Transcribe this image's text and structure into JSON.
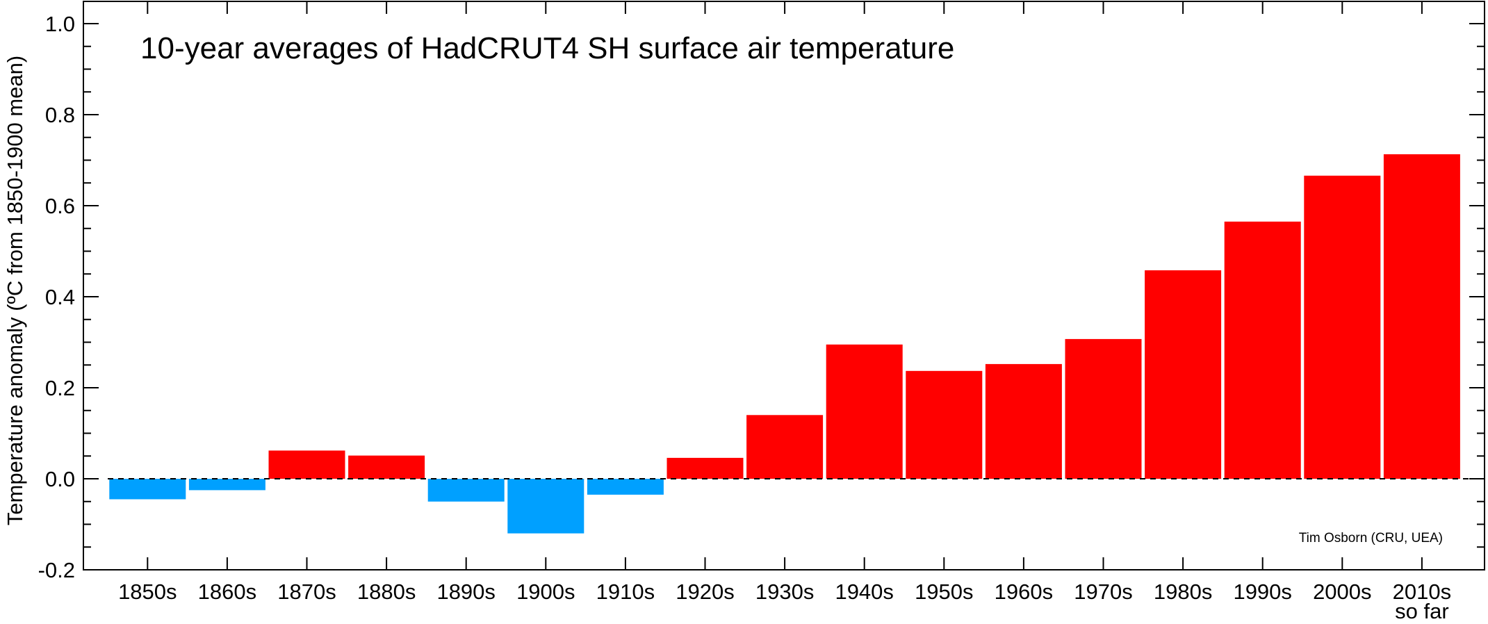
{
  "chart_data": {
    "type": "bar",
    "title": "10-year averages of HadCRUT4 SH surface air temperature",
    "ylabel": "Temperature anomaly (ºC from 1850-1900 mean)",
    "xlabel": "",
    "ylim": [
      -0.2,
      1.0
    ],
    "yticks": [
      "-0.2",
      "0.0",
      "0.2",
      "0.4",
      "0.6",
      "0.8",
      "1.0"
    ],
    "categories": [
      "1850s",
      "1860s",
      "1870s",
      "1880s",
      "1890s",
      "1900s",
      "1910s",
      "1920s",
      "1930s",
      "1940s",
      "1950s",
      "1960s",
      "1970s",
      "1980s",
      "1990s",
      "2000s",
      "2010s"
    ],
    "category_sublabels": {
      "2010s": "so far"
    },
    "values": [
      -0.045,
      -0.025,
      0.062,
      0.051,
      -0.05,
      -0.12,
      -0.035,
      0.046,
      0.14,
      0.295,
      0.237,
      0.252,
      0.307,
      0.458,
      0.565,
      0.666,
      0.713
    ],
    "colors": {
      "positive": "#ff0000",
      "negative": "#00a0ff"
    },
    "zero_line": "dashed",
    "grid": false,
    "legend": "none",
    "annotation": "Tim Osborn (CRU, UEA)"
  }
}
